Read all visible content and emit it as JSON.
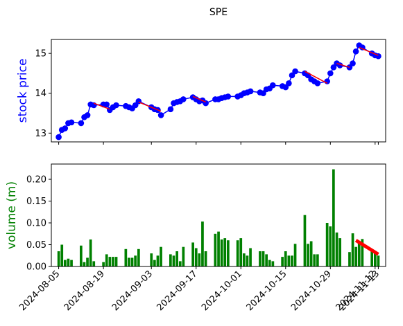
{
  "chart_data": [
    {
      "type": "line",
      "title": "SPE",
      "ylabel": "stock price",
      "ylabel_color": "#0000ff",
      "line_color": "#0000ff",
      "marker_color": "#0000ff",
      "trend_color": "#ff0000",
      "ylim": [
        12.78,
        15.35
      ],
      "yticks": [
        13,
        14,
        15
      ],
      "x": [
        "2024-08-05",
        "2024-08-06",
        "2024-08-07",
        "2024-08-08",
        "2024-08-09",
        "2024-08-12",
        "2024-08-13",
        "2024-08-14",
        "2024-08-15",
        "2024-08-16",
        "2024-08-19",
        "2024-08-20",
        "2024-08-21",
        "2024-08-22",
        "2024-08-23",
        "2024-08-26",
        "2024-08-27",
        "2024-08-28",
        "2024-08-29",
        "2024-08-30",
        "2024-09-03",
        "2024-09-04",
        "2024-09-05",
        "2024-09-06",
        "2024-09-09",
        "2024-09-10",
        "2024-09-11",
        "2024-09-12",
        "2024-09-13",
        "2024-09-16",
        "2024-09-17",
        "2024-09-18",
        "2024-09-19",
        "2024-09-20",
        "2024-09-23",
        "2024-09-24",
        "2024-09-25",
        "2024-09-26",
        "2024-09-27",
        "2024-09-30",
        "2024-10-01",
        "2024-10-02",
        "2024-10-03",
        "2024-10-04",
        "2024-10-07",
        "2024-10-08",
        "2024-10-09",
        "2024-10-10",
        "2024-10-11",
        "2024-10-14",
        "2024-10-15",
        "2024-10-16",
        "2024-10-17",
        "2024-10-18",
        "2024-10-21",
        "2024-10-22",
        "2024-10-23",
        "2024-10-24",
        "2024-10-25",
        "2024-10-28",
        "2024-10-29",
        "2024-10-30",
        "2024-10-31",
        "2024-11-01",
        "2024-11-04",
        "2024-11-05",
        "2024-11-06",
        "2024-11-07",
        "2024-11-08",
        "2024-11-11",
        "2024-11-12",
        "2024-11-13"
      ],
      "values": [
        12.9,
        13.08,
        13.12,
        13.25,
        13.27,
        13.25,
        13.4,
        13.45,
        13.72,
        13.7,
        13.72,
        13.72,
        13.58,
        13.65,
        13.7,
        13.68,
        13.65,
        13.62,
        13.7,
        13.8,
        13.65,
        13.6,
        13.58,
        13.45,
        13.6,
        13.75,
        13.78,
        13.8,
        13.85,
        13.9,
        13.85,
        13.8,
        13.82,
        13.75,
        13.85,
        13.85,
        13.88,
        13.9,
        13.92,
        13.92,
        13.95,
        14.0,
        14.02,
        14.05,
        14.02,
        14.0,
        14.1,
        14.12,
        14.2,
        14.18,
        14.15,
        14.25,
        14.45,
        14.55,
        14.5,
        14.45,
        14.35,
        14.3,
        14.25,
        14.3,
        14.5,
        14.65,
        14.75,
        14.7,
        14.65,
        14.75,
        15.05,
        15.2,
        15.15,
        15.0,
        14.95,
        14.93
      ],
      "trend_segments": [
        {
          "from": "2024-08-16",
          "to": "2024-08-21",
          "y": [
            13.75,
            13.6
          ]
        },
        {
          "from": "2024-08-30",
          "to": "2024-09-06",
          "y": [
            13.78,
            13.55
          ]
        },
        {
          "from": "2024-09-16",
          "to": "2024-09-20",
          "y": [
            13.92,
            13.78
          ]
        },
        {
          "from": "2024-10-21",
          "to": "2024-10-28",
          "y": [
            14.55,
            14.25
          ]
        },
        {
          "from": "2024-10-31",
          "to": "2024-11-04",
          "y": [
            14.75,
            14.65
          ]
        },
        {
          "from": "2024-11-07",
          "to": "2024-11-13",
          "y": [
            15.15,
            14.95
          ]
        }
      ]
    },
    {
      "type": "bar",
      "ylabel": "volume (m)",
      "ylabel_color": "#008000",
      "bar_color": "#008000",
      "trend_color": "#ff0000",
      "ylim": [
        0,
        0.235
      ],
      "yticks": [
        "0.00",
        "0.05",
        "0.10",
        "0.15",
        "0.20"
      ],
      "ytick_values": [
        0,
        0.05,
        0.1,
        0.15,
        0.2
      ],
      "xtick_labels": [
        "2024-08-05",
        "2024-08-19",
        "2024-09-03",
        "2024-09-17",
        "2024-10-01",
        "2024-10-15",
        "2024-10-29",
        "2024-11-12",
        "2024-11-13"
      ],
      "x": [
        "2024-08-05",
        "2024-08-06",
        "2024-08-07",
        "2024-08-08",
        "2024-08-09",
        "2024-08-12",
        "2024-08-13",
        "2024-08-14",
        "2024-08-15",
        "2024-08-16",
        "2024-08-19",
        "2024-08-20",
        "2024-08-21",
        "2024-08-22",
        "2024-08-23",
        "2024-08-26",
        "2024-08-27",
        "2024-08-28",
        "2024-08-29",
        "2024-08-30",
        "2024-09-03",
        "2024-09-04",
        "2024-09-05",
        "2024-09-06",
        "2024-09-09",
        "2024-09-10",
        "2024-09-11",
        "2024-09-12",
        "2024-09-13",
        "2024-09-16",
        "2024-09-17",
        "2024-09-18",
        "2024-09-19",
        "2024-09-20",
        "2024-09-23",
        "2024-09-24",
        "2024-09-25",
        "2024-09-26",
        "2024-09-27",
        "2024-09-30",
        "2024-10-01",
        "2024-10-02",
        "2024-10-03",
        "2024-10-04",
        "2024-10-07",
        "2024-10-08",
        "2024-10-09",
        "2024-10-10",
        "2024-10-11",
        "2024-10-14",
        "2024-10-15",
        "2024-10-16",
        "2024-10-17",
        "2024-10-18",
        "2024-10-21",
        "2024-10-22",
        "2024-10-23",
        "2024-10-24",
        "2024-10-25",
        "2024-10-28",
        "2024-10-29",
        "2024-10-30",
        "2024-10-31",
        "2024-11-01",
        "2024-11-04",
        "2024-11-05",
        "2024-11-06",
        "2024-11-07",
        "2024-11-08",
        "2024-11-11",
        "2024-11-12",
        "2024-11-13"
      ],
      "values": [
        0.035,
        0.05,
        0.015,
        0.018,
        0.015,
        0.048,
        0.01,
        0.02,
        0.062,
        0.012,
        0.01,
        0.028,
        0.022,
        0.022,
        0.022,
        0.04,
        0.02,
        0.02,
        0.025,
        0.04,
        0.03,
        0.015,
        0.025,
        0.045,
        0.028,
        0.025,
        0.035,
        0.012,
        0.045,
        0.055,
        0.042,
        0.03,
        0.103,
        0.035,
        0.075,
        0.08,
        0.062,
        0.065,
        0.06,
        0.06,
        0.065,
        0.03,
        0.025,
        0.042,
        0.035,
        0.035,
        0.028,
        0.015,
        0.012,
        0.022,
        0.035,
        0.025,
        0.025,
        0.052,
        0.118,
        0.052,
        0.058,
        0.028,
        0.028,
        0.1,
        0.092,
        0.223,
        0.078,
        0.065,
        0.033,
        0.076,
        0.045,
        0.055,
        0.063,
        0.038,
        0.035,
        0.025
      ],
      "trend_segment": {
        "from": "2024-11-06",
        "to": "2024-11-13",
        "y": [
          0.06,
          0.028
        ]
      }
    }
  ]
}
